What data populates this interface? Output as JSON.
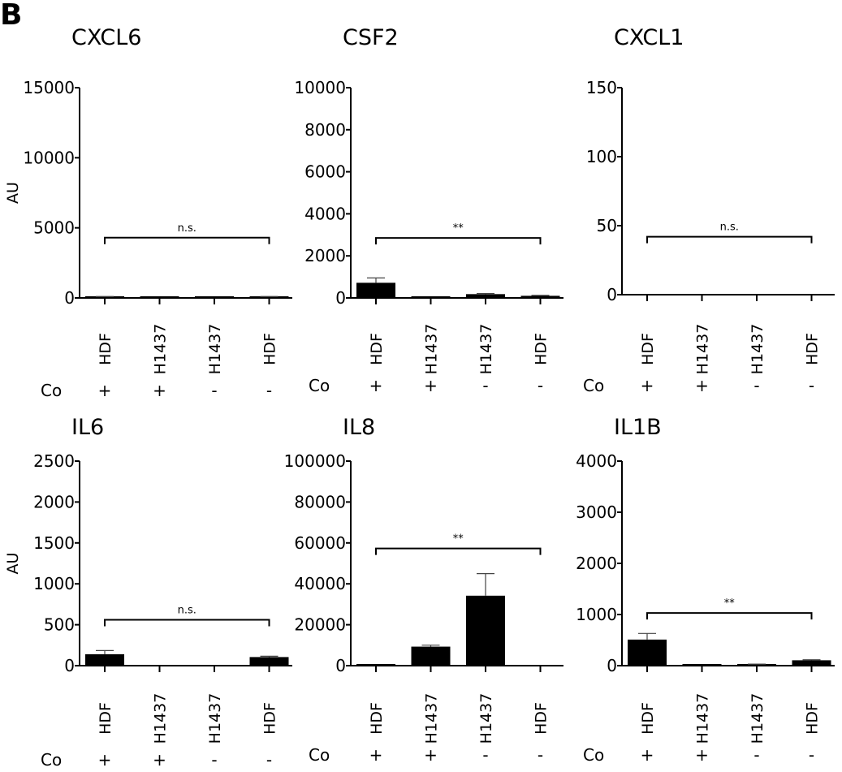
{
  "panel_label": "B",
  "chart_data": [
    {
      "type": "bar",
      "title": "CXCL6",
      "ylabel": "AU",
      "ylim": [
        0,
        15000
      ],
      "yticks": [
        0,
        5000,
        10000,
        15000
      ],
      "categories": [
        "HDF",
        "H1437",
        "H1437",
        "HDF"
      ],
      "co": [
        "+",
        "+",
        "-",
        "-"
      ],
      "co_label": "Co",
      "values": [
        80,
        10,
        10,
        80
      ],
      "errors": [
        20,
        0,
        0,
        20
      ],
      "significance": {
        "label": "n.s.",
        "y": 4300
      }
    },
    {
      "type": "bar",
      "title": "CSF2",
      "ylabel": "",
      "ylim": [
        0,
        10000
      ],
      "yticks": [
        0,
        2000,
        4000,
        6000,
        8000,
        10000
      ],
      "categories": [
        "HDF",
        "H1437",
        "H1437",
        "HDF"
      ],
      "co": [
        "+",
        "+",
        "-",
        "-"
      ],
      "co_label": "Co",
      "values": [
        720,
        50,
        180,
        100
      ],
      "errors": [
        230,
        0,
        30,
        20
      ],
      "significance": {
        "label": "**",
        "y": 2850
      }
    },
    {
      "type": "bar",
      "title": "CXCL1",
      "ylabel": "",
      "ylim": [
        0,
        150
      ],
      "yticks": [
        0,
        50,
        100,
        150
      ],
      "categories": [
        "HDF",
        "H1437",
        "H1437",
        "HDF"
      ],
      "co": [
        "+",
        "+",
        "-",
        "-"
      ],
      "co_label": "Co",
      "values": [
        0,
        0,
        0,
        0
      ],
      "errors": [
        0,
        0,
        0,
        0
      ],
      "significance": {
        "label": "n.s.",
        "y": 42
      }
    },
    {
      "type": "bar",
      "title": "IL6",
      "ylabel": "AU",
      "ylim": [
        0,
        2500
      ],
      "yticks": [
        0,
        500,
        1000,
        1500,
        2000,
        2500
      ],
      "categories": [
        "HDF",
        "H1437",
        "H1437",
        "HDF"
      ],
      "co": [
        "+",
        "+",
        "-",
        "-"
      ],
      "co_label": "Co",
      "values": [
        140,
        0,
        0,
        105
      ],
      "errors": [
        45,
        0,
        0,
        10
      ],
      "significance": {
        "label": "n.s.",
        "y": 560
      }
    },
    {
      "type": "bar",
      "title": "IL8",
      "ylabel": "",
      "ylim": [
        0,
        100000
      ],
      "yticks": [
        0,
        20000,
        40000,
        60000,
        80000,
        100000
      ],
      "categories": [
        "HDF",
        "H1437",
        "H1437",
        "HDF"
      ],
      "co": [
        "+",
        "+",
        "-",
        "-"
      ],
      "co_label": "Co",
      "values": [
        300,
        9300,
        34200,
        0
      ],
      "errors": [
        0,
        700,
        10800,
        0
      ],
      "significance": {
        "label": "**",
        "y": 57300
      }
    },
    {
      "type": "bar",
      "title": "IL1B",
      "ylabel": "",
      "ylim": [
        0,
        4000
      ],
      "yticks": [
        0,
        1000,
        2000,
        3000,
        4000
      ],
      "categories": [
        "HDF",
        "H1437",
        "H1437",
        "HDF"
      ],
      "co": [
        "+",
        "+",
        "-",
        "-"
      ],
      "co_label": "Co",
      "values": [
        510,
        15,
        25,
        105
      ],
      "errors": [
        120,
        0,
        5,
        10
      ],
      "significance": {
        "label": "**",
        "y": 1030
      }
    }
  ]
}
